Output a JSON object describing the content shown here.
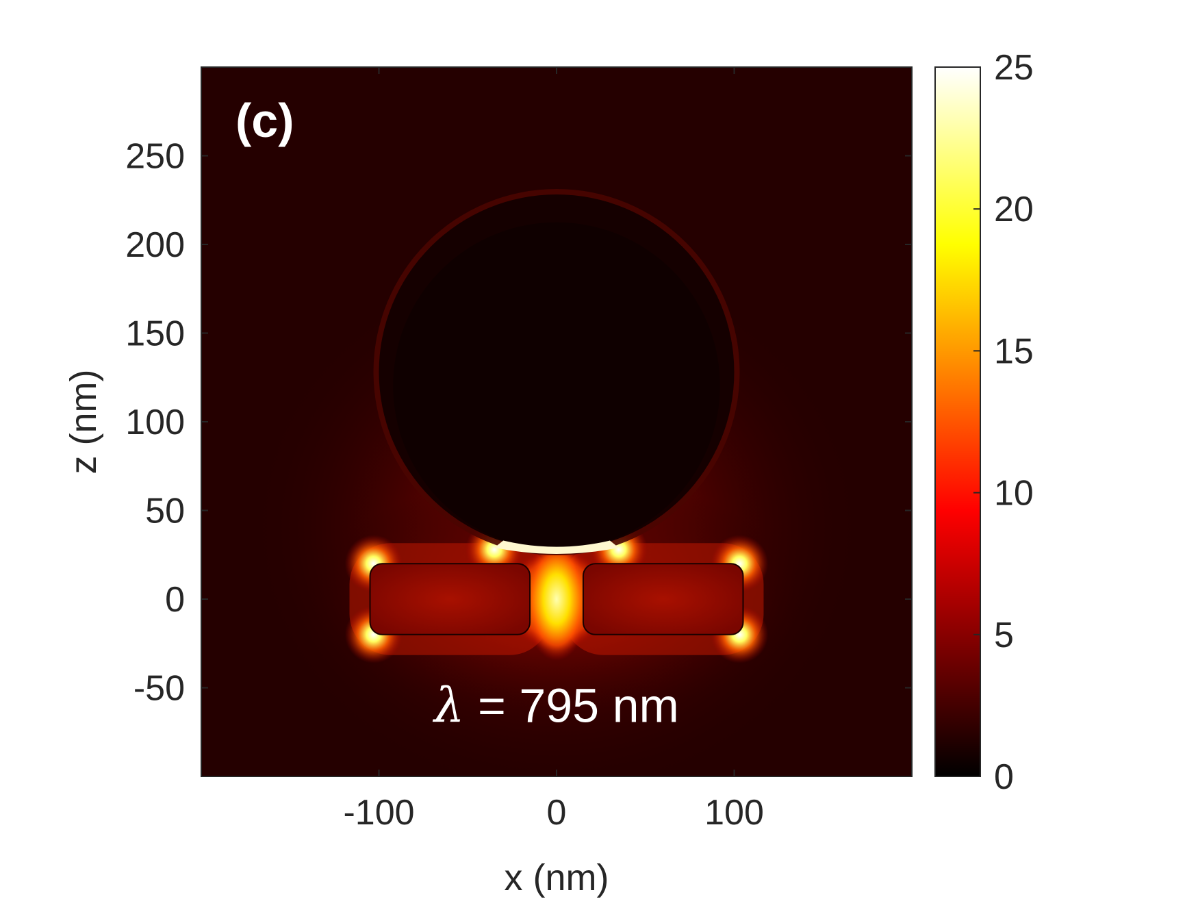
{
  "chart_data": {
    "type": "heatmap",
    "title": "",
    "panel_label": "(c)",
    "annotation": {
      "symbol": "λ",
      "text": " = 795 nm"
    },
    "xlabel": "x (nm)",
    "ylabel": "z (nm)",
    "xlim": [
      -200,
      200
    ],
    "ylim": [
      -100,
      300
    ],
    "x_ticks": [
      {
        "value": -100,
        "label": "-100"
      },
      {
        "value": 0,
        "label": "0"
      },
      {
        "value": 100,
        "label": "100"
      }
    ],
    "y_ticks": [
      {
        "value": -50,
        "label": "-50"
      },
      {
        "value": 0,
        "label": "0"
      },
      {
        "value": 50,
        "label": "50"
      },
      {
        "value": 100,
        "label": "100"
      },
      {
        "value": 150,
        "label": "150"
      },
      {
        "value": 200,
        "label": "200"
      },
      {
        "value": 250,
        "label": "250"
      }
    ],
    "colorbar": {
      "min": 0,
      "max": 25,
      "colormap": "hot",
      "ticks": [
        {
          "value": 0,
          "label": "0"
        },
        {
          "value": 5,
          "label": "5"
        },
        {
          "value": 10,
          "label": "10"
        },
        {
          "value": 15,
          "label": "15"
        },
        {
          "value": 20,
          "label": "20"
        },
        {
          "value": 25,
          "label": "25"
        }
      ]
    },
    "structures": [
      {
        "name": "sphere",
        "shape": "circle",
        "center_x": 0,
        "center_z": 128,
        "radius": 100
      },
      {
        "name": "left-rod",
        "shape": "rounded-rect",
        "x0": -105,
        "x1": -15,
        "z0": -20,
        "z1": 20
      },
      {
        "name": "right-rod",
        "shape": "rounded-rect",
        "x0": 15,
        "x1": 105,
        "z0": -20,
        "z1": 20
      }
    ],
    "hotspots": [
      {
        "x": 0,
        "z": 0,
        "value": 25
      },
      {
        "x": -103,
        "z": 20,
        "value": 25
      },
      {
        "x": 103,
        "z": 20,
        "value": 25
      },
      {
        "x": -103,
        "z": -20,
        "value": 25
      },
      {
        "x": 103,
        "z": -20,
        "value": 25
      },
      {
        "x": -35,
        "z": 28,
        "value": 25
      },
      {
        "x": 35,
        "z": 28,
        "value": 25
      }
    ],
    "grid": false,
    "legend": "none"
  }
}
